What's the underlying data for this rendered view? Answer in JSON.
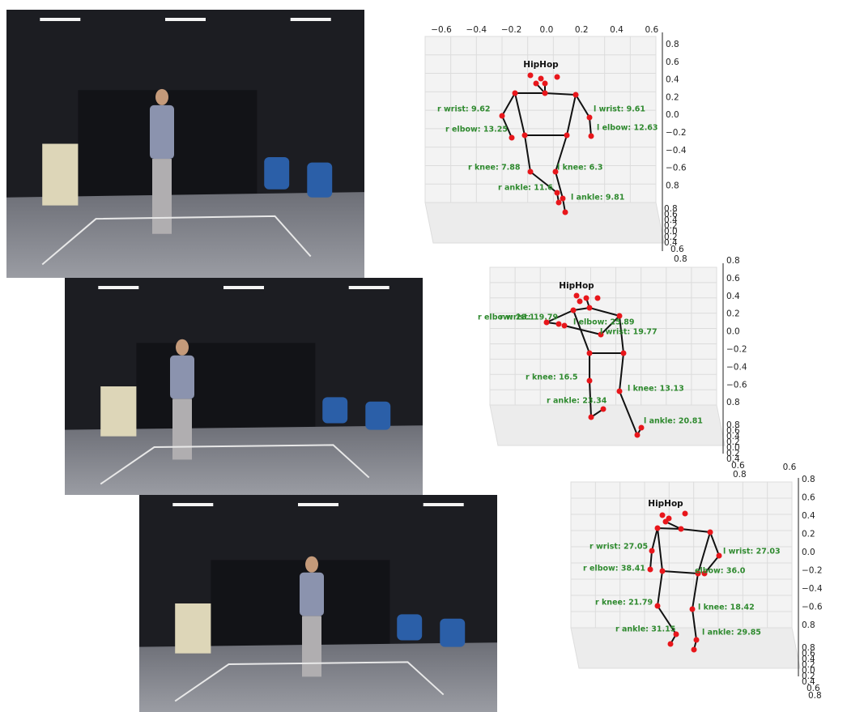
{
  "panels": [
    {
      "title": "HipHop",
      "x_ticks": [
        "−0.6",
        "−0.4",
        "−0.2",
        "0.0",
        "0.2",
        "0.4",
        "0.6"
      ],
      "z_ticks": [
        "0.8",
        "0.6",
        "0.4",
        "0.2",
        "0.0",
        "−0.2",
        "−0.4",
        "−0.6",
        "0.8"
      ],
      "y_ticks": [
        "0.8",
        "0.6",
        "0.4",
        "0.2",
        "0.0",
        "0.2",
        "0.4",
        "0.6",
        "0.8"
      ],
      "labels": [
        "r wrist: 9.62",
        "l wrist: 9.61",
        "r elbow: 13.25",
        "l elbow: 12.63",
        "r knee: 7.88",
        "l knee: 6.3",
        "r ankle: 11.6",
        "l ankle: 9.81"
      ]
    },
    {
      "title": "HipHop",
      "x_ticks": [],
      "z_ticks": [
        "0.8",
        "0.6",
        "0.4",
        "0.2",
        "0.0",
        "−0.2",
        "−0.4",
        "−0.6",
        "0.8"
      ],
      "y_ticks": [
        "0.8",
        "0.6",
        "0.4",
        "0.2",
        "0.0",
        "0.2",
        "0.4",
        "0.6",
        "0.8"
      ],
      "labels": [
        "r elbow: 28.1",
        "r wrist: 19.79",
        "l elbow: 25.89",
        "l wrist: 19.77",
        "r knee: 16.5",
        "l knee: 13.13",
        "r ankle: 23.34",
        "l ankle: 20.81"
      ]
    },
    {
      "title": "HipHop",
      "x_ticks": [
        "0.6"
      ],
      "z_ticks": [
        "0.8",
        "0.6",
        "0.4",
        "0.2",
        "0.0",
        "−0.2",
        "−0.4",
        "−0.6",
        "0.8"
      ],
      "y_ticks": [
        "0.8",
        "0.6",
        "0.4",
        "0.2",
        "0.0",
        "0.2",
        "0.4",
        "0.6",
        "0.8"
      ],
      "labels": [
        "r wrist: 27.05",
        "l wrist: 27.03",
        "r elbow: 38.41",
        "elbow: 36.0",
        "r knee: 21.79",
        "l knee: 18.42",
        "r ankle: 31.15",
        "l ankle: 29.85"
      ]
    }
  ]
}
